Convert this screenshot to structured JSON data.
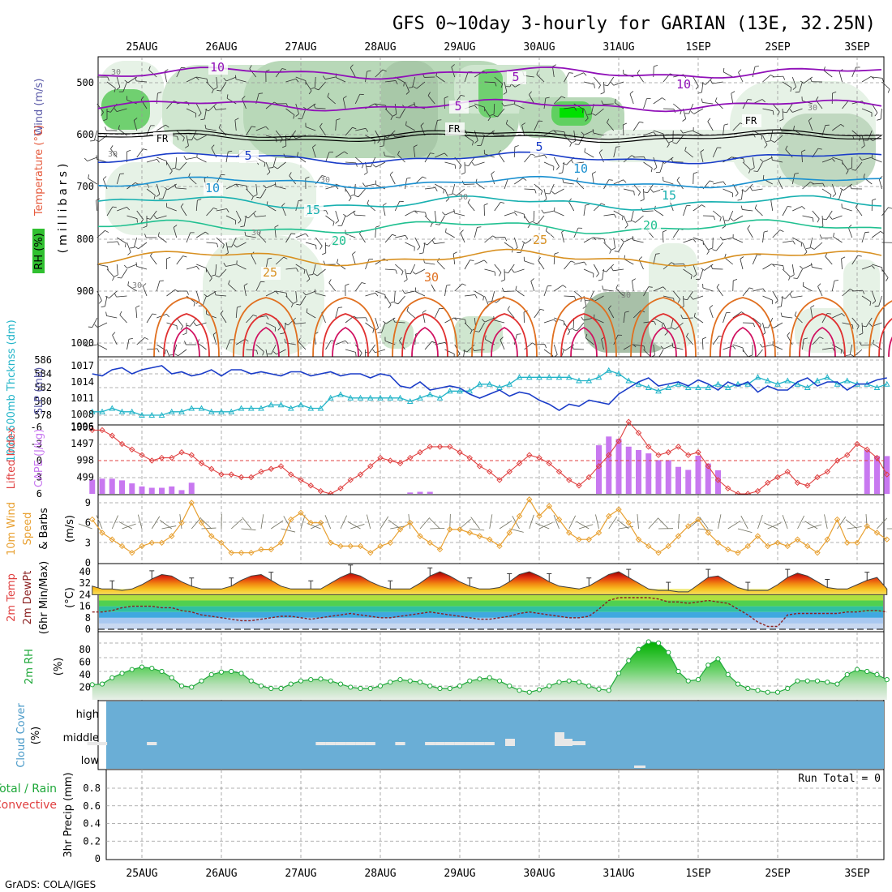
{
  "title": "GFS 0~10day 3-hourly for GARIAN (13E, 32.25N)",
  "footer": "GrADS: COLA/IGES",
  "colors": {
    "humidity": "#1fa83a",
    "temperature": "#e65a3c",
    "wind": "#5a5aa8",
    "thickness": "#22b4c8",
    "slp": "#1a3cc8",
    "cape": "#c878f0",
    "lifted": "#e04040",
    "windspeed": "#e8a030",
    "rh": "#1fa83a",
    "cloud": "#6aaed6",
    "rain": "#1fa83a",
    "convective": "#e04040"
  },
  "time_axis": {
    "top_labels": [
      "25AUG",
      "26AUG",
      "27AUG",
      "28AUG",
      "29AUG",
      "30AUG",
      "31AUG",
      "1SEP",
      "2SEP",
      "3SEP"
    ],
    "bottom_labels": [
      "25AUG",
      "26AUG",
      "27AUG",
      "28AUG",
      "29AUG",
      "30AUG",
      "31AUG",
      "1SEP",
      "2SEP",
      "3SEP"
    ]
  },
  "panels": {
    "upper_air": {
      "ylabel_main": "(millibars)",
      "ylabel_wind": "Wind (m/s)",
      "ylabel_temp": "Temperature (°C)",
      "ylabel_rh": "RH (%)",
      "ticks": [
        "500",
        "600",
        "700",
        "800",
        "900",
        "1000"
      ],
      "isotherm_labels": [
        {
          "text": "10",
          "c": "#9010b8"
        },
        {
          "text": "5",
          "c": "#9010b8"
        },
        {
          "text": "10",
          "c": "#9010b8"
        },
        {
          "text": "5",
          "c": "#9010b8"
        },
        {
          "text": "FR",
          "c": "#000"
        },
        {
          "text": "FR",
          "c": "#000"
        },
        {
          "text": "FR",
          "c": "#000"
        },
        {
          "text": "5",
          "c": "#1a3cc8"
        },
        {
          "text": "5",
          "c": "#1a3cc8"
        },
        {
          "text": "10",
          "c": "#1a90d0"
        },
        {
          "text": "10",
          "c": "#1a90d0"
        },
        {
          "text": "15",
          "c": "#18b0b0"
        },
        {
          "text": "15",
          "c": "#18b0b0"
        },
        {
          "text": "20",
          "c": "#20c090"
        },
        {
          "text": "20",
          "c": "#20c090"
        },
        {
          "text": "25",
          "c": "#d89020"
        },
        {
          "text": "25",
          "c": "#d89020"
        },
        {
          "text": "30",
          "c": "#e07020"
        }
      ],
      "rh_labels": [
        "30",
        "30",
        "30",
        "30",
        "30",
        "30",
        "30",
        "30"
      ]
    },
    "thickness_slp": {
      "ylabel_thk": "1000-500mb Thcknss (dm)",
      "ylabel_slp": "SLP (mb)",
      "thk_ticks": [
        "586",
        "584",
        "582",
        "580",
        "578"
      ],
      "slp_ticks": [
        "1017",
        "1014",
        "1011",
        "1008",
        "1005"
      ]
    },
    "cape_li": {
      "ylabel_li": "Lifted Index",
      "ylabel_cape": "CAPE (J/kg)",
      "li_ticks": [
        "-6",
        "-3",
        "0",
        "3",
        "6"
      ],
      "cape_ticks": [
        "1996",
        "1497",
        "998",
        "499"
      ]
    },
    "wind10": {
      "ylabel_a": "10m Wind",
      "ylabel_b": "Speed",
      "ylabel_c": "& Barbs",
      "ylabel_u": "(m/s)",
      "ticks": [
        "9",
        "6",
        "3",
        "0"
      ]
    },
    "temp2m": {
      "ylabel_a": "2m Temp",
      "ylabel_b": "2m DewPt",
      "ylabel_c": "(6hr Min/Max)",
      "ylabel_u": "(°C)",
      "ticks": [
        "40",
        "32",
        "24",
        "16",
        "8",
        "0"
      ]
    },
    "rh2m": {
      "ylabel": "2m RH",
      "ylabel_u": "(%)",
      "ticks": [
        "80",
        "60",
        "40",
        "20"
      ]
    },
    "cloud": {
      "ylabel": "Cloud Cover",
      "ylabel_u": "(%)",
      "levels": [
        "high",
        "middle",
        "low"
      ]
    },
    "precip": {
      "ylabel_a": "Total / Rain",
      "ylabel_b": "Convective",
      "ylabel_c": "3hr Precip (mm)",
      "ticks": [
        "0.8",
        "0.6",
        "0.4",
        "0.2",
        "0"
      ],
      "run_total": "Run Total = 0"
    }
  },
  "chart_data": {
    "type": "meteogram",
    "time_step_hours": 3,
    "n_steps": 81,
    "days": [
      "25AUG",
      "26AUG",
      "27AUG",
      "28AUG",
      "29AUG",
      "30AUG",
      "31AUG",
      "1SEP",
      "2SEP",
      "3SEP"
    ],
    "slp_mb": [
      1015,
      1014.5,
      1016,
      1016.5,
      1015,
      1016,
      1016.5,
      1017,
      1015,
      1015.5,
      1014.5,
      1015,
      1016,
      1014.5,
      1016,
      1016,
      1015,
      1015.5,
      1015,
      1014.5,
      1015.5,
      1015.5,
      1014.5,
      1015,
      1015.5,
      1014.5,
      1015,
      1015,
      1014,
      1015,
      1014.5,
      1012,
      1011.5,
      1013,
      1011,
      1011.5,
      1012,
      1011.5,
      1010,
      1009,
      1010,
      1011,
      1009.5,
      1010.5,
      1010,
      1008.5,
      1007.5,
      1006,
      1007.5,
      1007,
      1008.5,
      1008,
      1007.5,
      1010,
      1011.5,
      1013,
      1014,
      1012,
      1012.5,
      1013,
      1012,
      1013.5,
      1012.5,
      1011,
      1013,
      1012,
      1013,
      1010.5,
      1012,
      1011,
      1011,
      1013,
      1014,
      1012,
      1013,
      1013,
      1011,
      1012.5,
      1012.5,
      1013.5,
      1014
    ],
    "thickness_dm": [
      578.5,
      578.5,
      579,
      578.5,
      578.5,
      578,
      578,
      578,
      578.5,
      578.5,
      579,
      579,
      578.5,
      578.5,
      578.5,
      579,
      579,
      579,
      579.5,
      579.5,
      579,
      579.5,
      579,
      579,
      580.5,
      581,
      580.5,
      580.5,
      580.5,
      580.5,
      580.5,
      580.5,
      580,
      580.5,
      581,
      580.5,
      581.5,
      581.5,
      581.5,
      582.5,
      582.5,
      582,
      582.5,
      583.5,
      583.5,
      583.5,
      583.5,
      583.5,
      583.5,
      583,
      583,
      583.5,
      584.5,
      584,
      583,
      582.5,
      582,
      581.5,
      582,
      582.5,
      582,
      582,
      582,
      582.5,
      582,
      582.5,
      582.5,
      583.5,
      583,
      582.5,
      583,
      582.5,
      582,
      583,
      583.5,
      582.5,
      583,
      582.5,
      582.5,
      582,
      582.5
    ],
    "lifted_index": [
      -5.5,
      -5.5,
      -4.5,
      -3,
      -2,
      -1,
      0,
      -0.5,
      -0.5,
      -1.5,
      -1,
      0.5,
      1.5,
      2.5,
      2.5,
      3,
      3,
      2,
      1.5,
      1,
      2.5,
      3.5,
      4.5,
      5.5,
      6,
      5,
      3.5,
      2.5,
      1,
      -0.5,
      0,
      0.5,
      -0.5,
      -1.5,
      -2.5,
      -2.5,
      -2.5,
      -1.5,
      -0.5,
      1,
      2,
      3.5,
      2,
      0.5,
      -1,
      -0.5,
      0.5,
      2,
      3.5,
      4.5,
      3,
      1,
      -1,
      -3.5,
      -7,
      -5,
      -2.5,
      -1,
      -1.5,
      -2.5,
      -1,
      -1.5,
      1,
      3.5,
      5,
      6,
      6,
      5.5,
      4,
      3,
      2,
      4,
      4.5,
      3,
      2,
      0,
      -1,
      -3,
      -2,
      -0.5,
      2.5
    ],
    "cape_jkg": [
      420,
      450,
      450,
      400,
      310,
      220,
      180,
      180,
      220,
      110,
      330,
      0,
      0,
      0,
      0,
      0,
      0,
      0,
      0,
      0,
      0,
      0,
      0,
      0,
      0,
      0,
      0,
      0,
      0,
      0,
      0,
      0,
      40,
      60,
      60,
      0,
      0,
      0,
      0,
      0,
      0,
      0,
      0,
      0,
      0,
      0,
      0,
      0,
      0,
      0,
      0,
      1440,
      1700,
      1630,
      1400,
      1300,
      1200,
      1000,
      1000,
      800,
      710,
      1130,
      900,
      700,
      0,
      0,
      0,
      0,
      0,
      0,
      0,
      0,
      0,
      0,
      0,
      0,
      0,
      0,
      1300,
      1120,
      1120,
      1100
    ],
    "wind10m_ms": [
      6.5,
      4.5,
      3.5,
      2.5,
      1.5,
      2.5,
      3,
      3,
      4,
      6,
      9,
      6,
      4,
      3,
      1.5,
      1.5,
      1.5,
      2,
      2,
      3,
      6.5,
      7.5,
      6,
      6,
      3,
      2.5,
      2.5,
      2.5,
      1.5,
      2.5,
      3,
      5,
      6,
      4,
      3,
      2,
      5,
      5,
      4.5,
      4,
      3.5,
      2.5,
      4.5,
      7,
      9.5,
      7,
      8.5,
      6.5,
      4.5,
      3.5,
      3.5,
      4.5,
      7,
      8,
      6,
      3.5,
      2.5,
      1.5,
      2.5,
      4,
      5.5,
      6.5,
      4.5,
      3,
      2,
      1.5,
      2.5,
      4,
      2.5,
      3,
      2.5,
      3.5,
      2.5,
      1.5,
      3.5,
      6.5,
      3,
      3,
      5.5,
      4.5,
      3.5
    ],
    "temp2m_c": [
      30,
      28,
      28,
      27,
      28,
      31,
      35,
      38,
      37,
      33,
      30,
      28,
      28,
      28,
      30,
      34,
      37,
      38,
      34,
      30,
      28,
      28,
      28,
      28,
      32,
      36,
      39,
      37,
      33,
      30,
      28,
      28,
      28,
      32,
      37,
      40,
      37,
      33,
      30,
      28,
      28,
      29,
      33,
      38,
      40,
      37,
      33,
      30,
      29,
      28,
      30,
      34,
      38,
      40,
      36,
      32,
      28,
      27,
      27,
      26,
      26,
      31,
      36,
      37,
      33,
      29,
      27,
      27,
      27,
      31,
      36,
      39,
      37,
      33,
      29,
      28,
      28,
      31,
      34,
      36,
      28
    ],
    "dewpt2m_c": [
      12,
      12,
      13,
      15,
      16,
      16,
      16,
      15,
      15,
      13,
      12,
      10,
      9,
      8,
      7,
      6,
      6,
      7,
      8,
      9,
      9,
      8,
      7,
      8,
      9,
      10,
      11,
      10,
      9,
      8,
      8,
      9,
      10,
      11,
      12,
      11,
      10,
      9,
      8,
      7,
      7,
      8,
      9,
      11,
      12,
      11,
      10,
      9,
      8,
      8,
      9,
      14,
      20,
      22,
      22,
      22,
      22,
      21,
      19,
      19,
      18,
      19,
      20,
      19,
      18,
      14,
      10,
      5,
      2,
      2,
      10,
      11,
      11,
      11,
      11,
      11,
      12,
      12,
      13,
      13,
      12
    ],
    "rh2m_pct": [
      24,
      25,
      35,
      42,
      48,
      52,
      50,
      45,
      35,
      22,
      20,
      30,
      40,
      44,
      45,
      42,
      30,
      22,
      18,
      18,
      25,
      30,
      32,
      33,
      30,
      25,
      20,
      18,
      18,
      22,
      28,
      32,
      30,
      28,
      22,
      18,
      18,
      22,
      30,
      33,
      35,
      30,
      22,
      15,
      12,
      16,
      22,
      28,
      30,
      28,
      22,
      17,
      15,
      42,
      62,
      80,
      92,
      90,
      75,
      45,
      30,
      32,
      55,
      65,
      40,
      25,
      18,
      15,
      12,
      12,
      18,
      30,
      30,
      30,
      28,
      25,
      40,
      48,
      45,
      40,
      32
    ],
    "cloud_mid": [
      1,
      1,
      0,
      0,
      0,
      0,
      1,
      0,
      0,
      0,
      0,
      0,
      0,
      0,
      0,
      0,
      0,
      0,
      0,
      0,
      0,
      0,
      0,
      1,
      1,
      1,
      1,
      1,
      1,
      0,
      0,
      1,
      0,
      0,
      1,
      1,
      1,
      1,
      1,
      1,
      1,
      0,
      0,
      0,
      0,
      0,
      0,
      0,
      0,
      0,
      0,
      0,
      0,
      0,
      0,
      0,
      0,
      0,
      0,
      0,
      0,
      0,
      0,
      0,
      0,
      0,
      0,
      0,
      0,
      0,
      0,
      0,
      0,
      0,
      0,
      0,
      0,
      0,
      0,
      0,
      0
    ],
    "precip_mm": [
      0,
      0,
      0,
      0,
      0,
      0,
      0,
      0,
      0,
      0,
      0,
      0,
      0,
      0,
      0,
      0,
      0,
      0,
      0,
      0,
      0,
      0,
      0,
      0,
      0,
      0,
      0,
      0,
      0,
      0,
      0,
      0,
      0,
      0,
      0,
      0,
      0,
      0,
      0,
      0,
      0,
      0,
      0,
      0,
      0,
      0,
      0,
      0,
      0,
      0,
      0,
      0,
      0,
      0,
      0,
      0,
      0,
      0,
      0,
      0,
      0,
      0,
      0,
      0,
      0,
      0,
      0,
      0,
      0,
      0,
      0,
      0,
      0,
      0,
      0,
      0,
      0,
      0,
      0,
      0,
      0
    ],
    "run_total_mm": 0
  }
}
